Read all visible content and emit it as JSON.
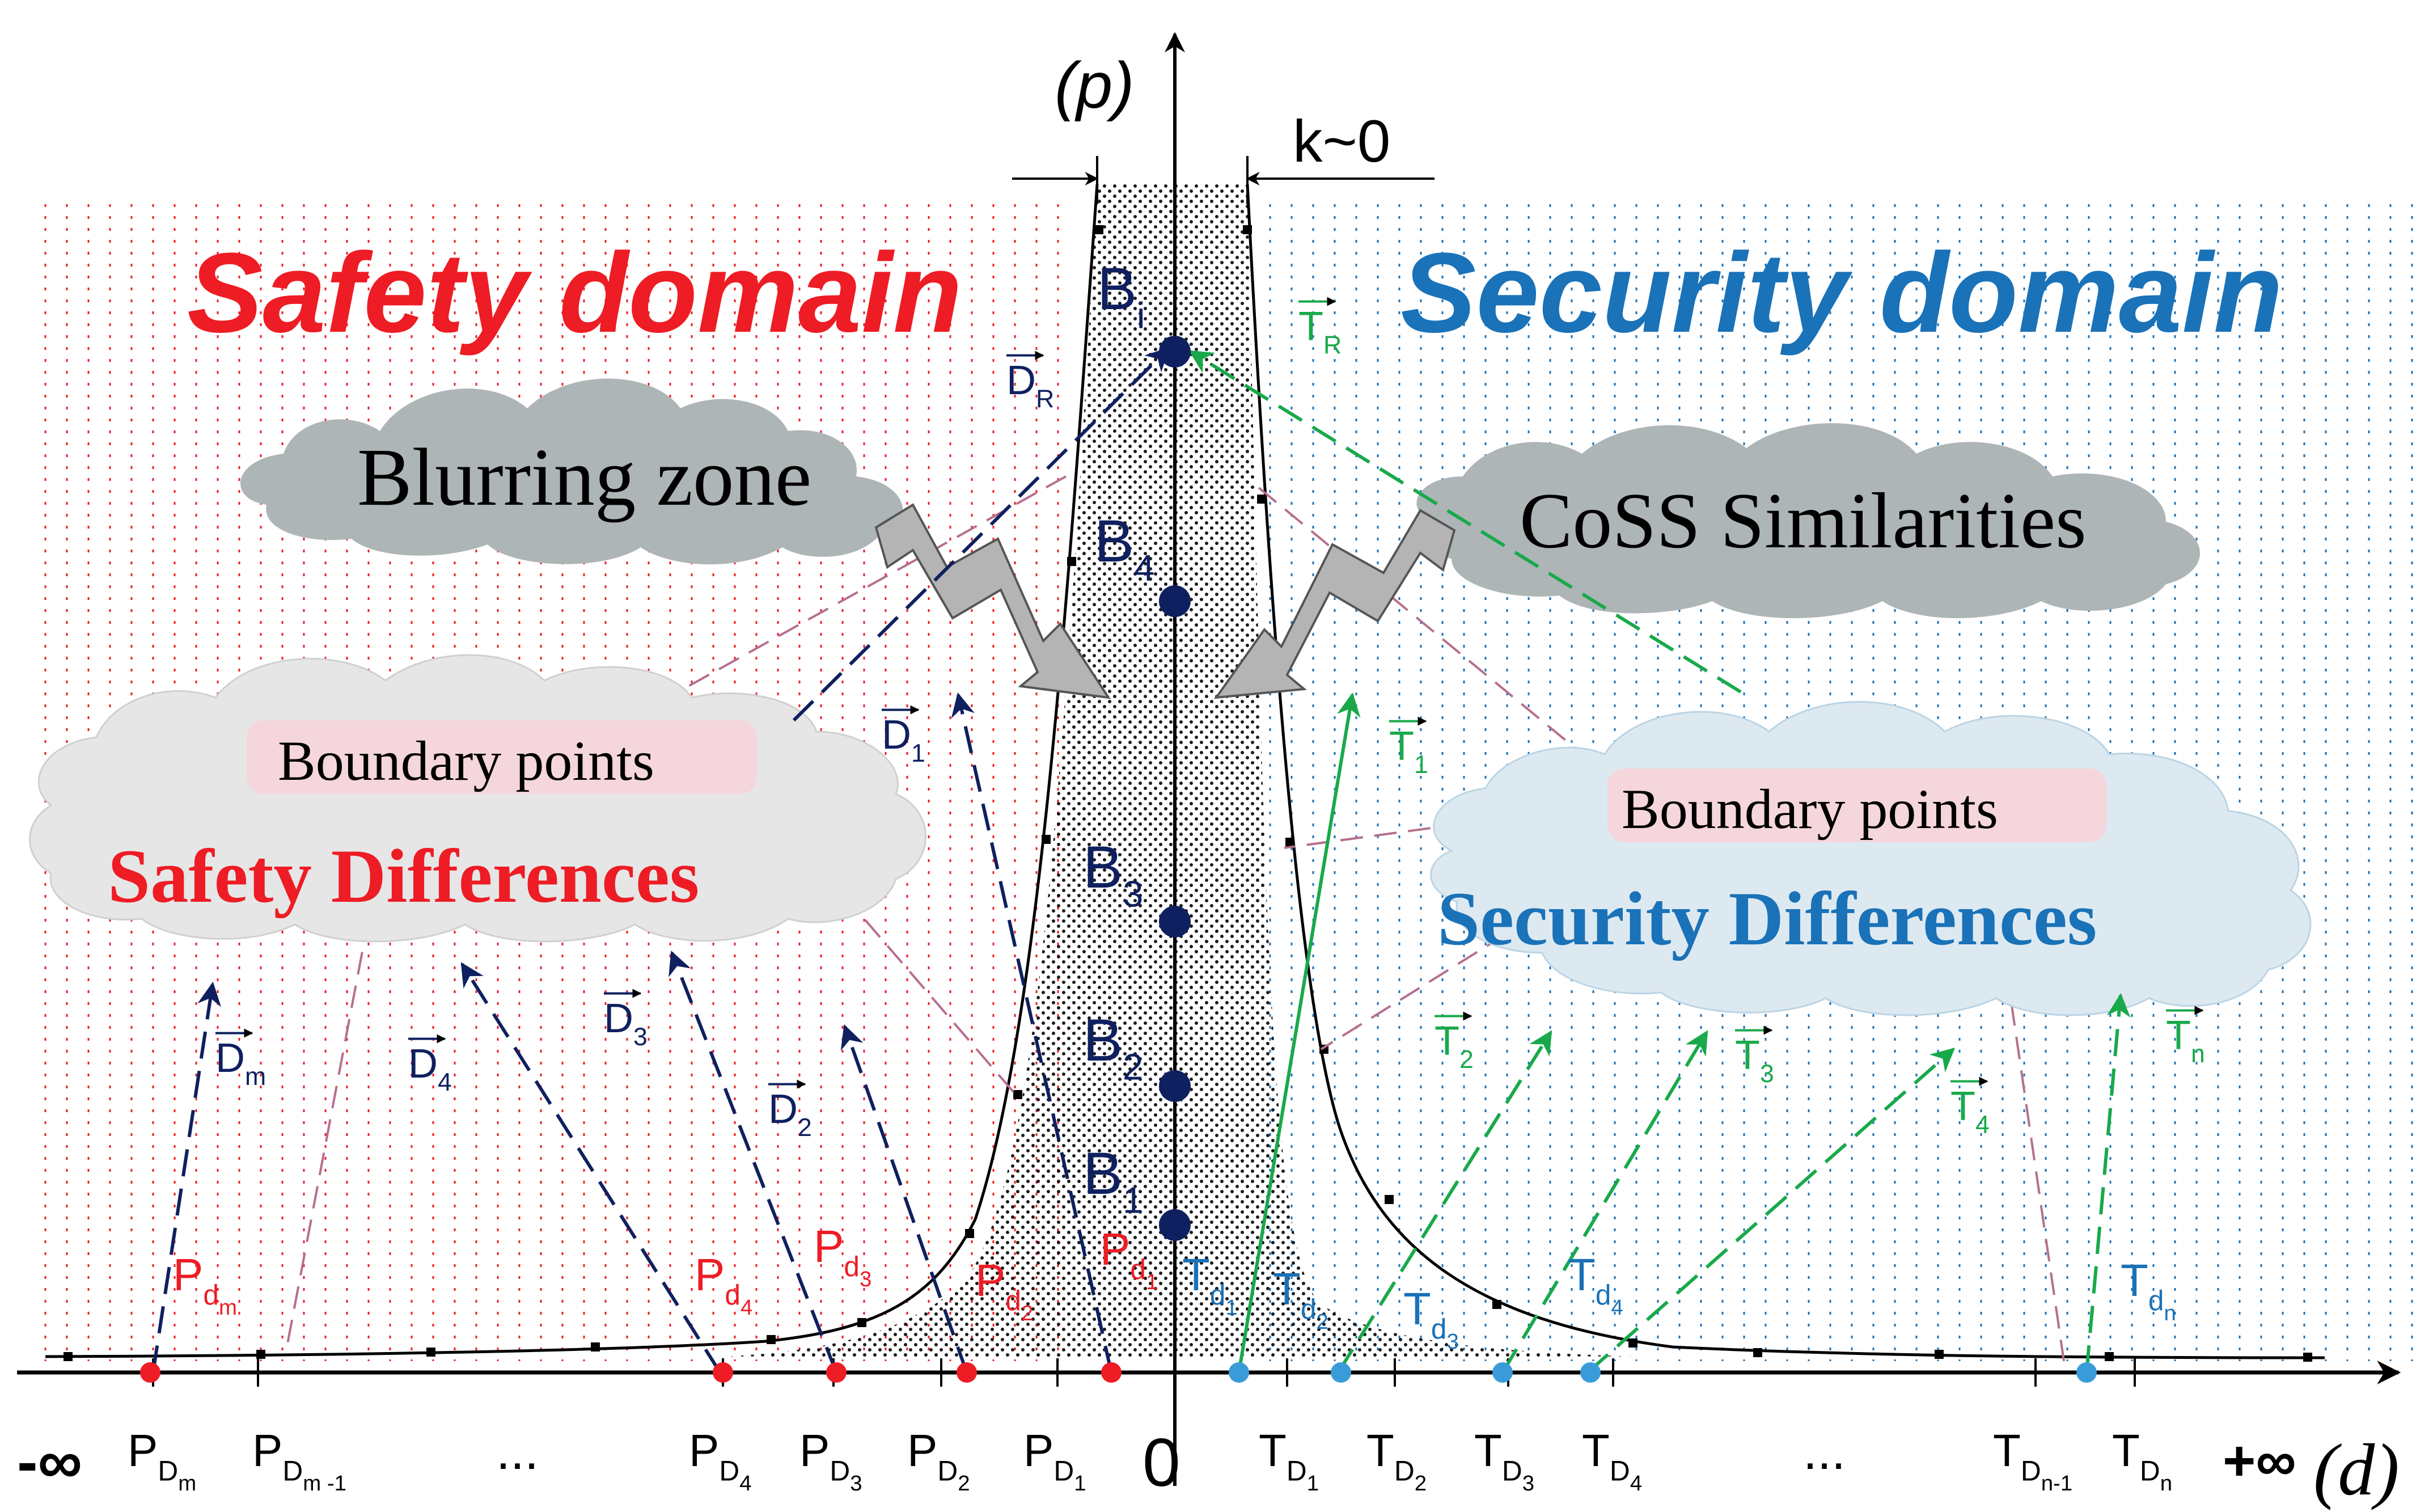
{
  "labels": {
    "p_axis": "(p)",
    "d_axis": "(d)",
    "k": "k~0",
    "origin": "0",
    "neg_inf": "-∞",
    "pos_inf": "+∞",
    "ellipsis": "...",
    "safety_domain": "Safety domain",
    "security_domain": "Security domain",
    "blurring_zone": "Blurring zone",
    "coss": "CoSS Similarities",
    "boundary_points": "Boundary points",
    "safety_differences": "Safety Differences",
    "security_differences": "Security Differences"
  },
  "b_points": [
    {
      "base": "B",
      "sub": "i"
    },
    {
      "base": "B",
      "sub": "4"
    },
    {
      "base": "B",
      "sub": "3"
    },
    {
      "base": "B",
      "sub": "2"
    },
    {
      "base": "B",
      "sub": "1"
    }
  ],
  "d_vectors": [
    {
      "base": "D",
      "sub": "R"
    },
    {
      "base": "D",
      "sub": "1"
    },
    {
      "base": "D",
      "sub": "2"
    },
    {
      "base": "D",
      "sub": "3"
    },
    {
      "base": "D",
      "sub": "4"
    },
    {
      "base": "D",
      "sub": "m"
    }
  ],
  "t_vectors": [
    {
      "base": "T",
      "sub": "R"
    },
    {
      "base": "T",
      "sub": "1"
    },
    {
      "base": "T",
      "sub": "2"
    },
    {
      "base": "T",
      "sub": "3"
    },
    {
      "base": "T",
      "sub": "4"
    },
    {
      "base": "T",
      "sub": "n"
    }
  ],
  "pd_points": [
    {
      "base": "P",
      "sub": "d",
      "subsub": "m"
    },
    {
      "base": "P",
      "sub": "d",
      "subsub": "4"
    },
    {
      "base": "P",
      "sub": "d",
      "subsub": "3"
    },
    {
      "base": "P",
      "sub": "d",
      "subsub": "2"
    },
    {
      "base": "P",
      "sub": "d",
      "subsub": "1"
    }
  ],
  "td_points": [
    {
      "base": "T",
      "sub": "d",
      "subsub": "1"
    },
    {
      "base": "T",
      "sub": "d",
      "subsub": "2"
    },
    {
      "base": "T",
      "sub": "d",
      "subsub": "3"
    },
    {
      "base": "T",
      "sub": "d",
      "subsub": "4"
    },
    {
      "base": "T",
      "sub": "d",
      "subsub": "n"
    }
  ],
  "axis_ticks_left": [
    {
      "base": "P",
      "sub": "D",
      "subsub": "m"
    },
    {
      "base": "P",
      "sub": "D",
      "subsub": "m -1"
    },
    {
      "base": "P",
      "sub": "D",
      "subsub": "4"
    },
    {
      "base": "P",
      "sub": "D",
      "subsub": "3"
    },
    {
      "base": "P",
      "sub": "D",
      "subsub": "2"
    },
    {
      "base": "P",
      "sub": "D",
      "subsub": "1"
    }
  ],
  "axis_ticks_right": [
    {
      "base": "T",
      "sub": "D",
      "subsub": "1"
    },
    {
      "base": "T",
      "sub": "D",
      "subsub": "2"
    },
    {
      "base": "T",
      "sub": "D",
      "subsub": "3"
    },
    {
      "base": "T",
      "sub": "D",
      "subsub": "4"
    },
    {
      "base": "T",
      "sub": "D",
      "subsub": "n-1"
    },
    {
      "base": "T",
      "sub": "D",
      "subsub": "n"
    }
  ],
  "colors": {
    "safety": "#ee1c24",
    "security": "#1a72b8",
    "navy": "#0f2060",
    "green": "#19a94b",
    "mauve": "#b56f8c",
    "cloud_gray": "#aeb5b6",
    "cloud_light": "#e6e6e6",
    "cloud_blue": "#dde9f1",
    "boundary_pink": "#f4d6dc"
  }
}
